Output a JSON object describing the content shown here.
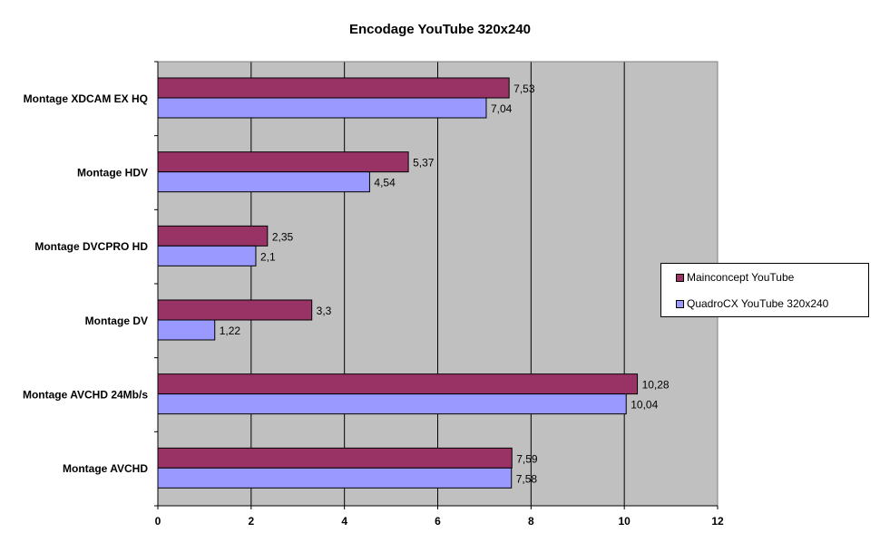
{
  "chart_data": {
    "type": "bar",
    "orientation": "horizontal",
    "title": "Encodage YouTube 320x240",
    "categories": [
      "Montage XDCAM EX HQ",
      "Montage HDV",
      "Montage DVCPRO HD",
      "Montage DV",
      "Montage AVCHD 24Mb/s",
      "Montage AVCHD"
    ],
    "series": [
      {
        "name": "Mainconcept YouTube",
        "color": "#993366",
        "values": [
          7.53,
          5.37,
          2.35,
          3.3,
          10.28,
          7.59
        ],
        "labels": [
          "7,53",
          "5,37",
          "2,35",
          "3,3",
          "10,28",
          "7,59"
        ]
      },
      {
        "name": "QuadroCX YouTube 320x240",
        "color": "#9999ff",
        "values": [
          7.04,
          4.54,
          2.1,
          1.22,
          10.04,
          7.58
        ],
        "labels": [
          "7,04",
          "4,54",
          "2,1",
          "1,22",
          "10,04",
          "7,58"
        ]
      }
    ],
    "xlim": [
      0,
      12
    ],
    "xticks": [
      "0",
      "2",
      "4",
      "6",
      "8",
      "10",
      "12"
    ],
    "grid": "vertical",
    "plot_background": "#c0c0c0",
    "legend_position": "right"
  }
}
